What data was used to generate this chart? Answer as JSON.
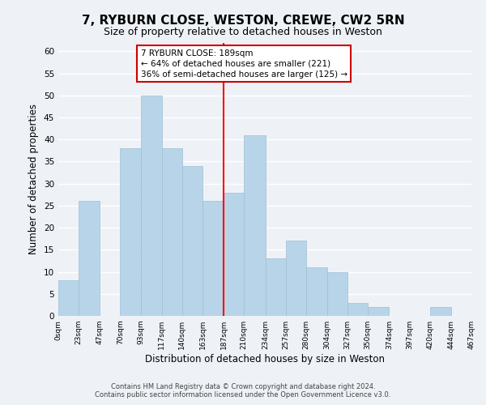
{
  "title": "7, RYBURN CLOSE, WESTON, CREWE, CW2 5RN",
  "subtitle": "Size of property relative to detached houses in Weston",
  "xlabel": "Distribution of detached houses by size in Weston",
  "ylabel": "Number of detached properties",
  "footer_lines": [
    "Contains HM Land Registry data © Crown copyright and database right 2024.",
    "Contains public sector information licensed under the Open Government Licence v3.0."
  ],
  "annotation_title": "7 RYBURN CLOSE: 189sqm",
  "annotation_line1": "← 64% of detached houses are smaller (221)",
  "annotation_line2": "36% of semi-detached houses are larger (125) →",
  "bar_edges": [
    0,
    23,
    47,
    70,
    93,
    117,
    140,
    163,
    187,
    210,
    234,
    257,
    280,
    304,
    327,
    350,
    374,
    397,
    420,
    444,
    467
  ],
  "bar_heights": [
    8,
    26,
    0,
    38,
    50,
    38,
    34,
    26,
    28,
    41,
    13,
    17,
    11,
    10,
    3,
    2,
    0,
    0,
    2,
    0
  ],
  "bar_color": "#b8d4e8",
  "bar_edgecolor": "#a0bfd5",
  "vline_x": 187,
  "vline_color": "red",
  "ylim": [
    0,
    62
  ],
  "yticks": [
    0,
    5,
    10,
    15,
    20,
    25,
    30,
    35,
    40,
    45,
    50,
    55,
    60
  ],
  "xtick_labels": [
    "0sqm",
    "23sqm",
    "47sqm",
    "70sqm",
    "93sqm",
    "117sqm",
    "140sqm",
    "163sqm",
    "187sqm",
    "210sqm",
    "234sqm",
    "257sqm",
    "280sqm",
    "304sqm",
    "327sqm",
    "350sqm",
    "374sqm",
    "397sqm",
    "420sqm",
    "444sqm",
    "467sqm"
  ],
  "background_color": "#eef2f7",
  "plot_background_color": "#eef2f7",
  "grid_color": "white",
  "title_fontsize": 11,
  "subtitle_fontsize": 9,
  "annotation_box_edgecolor": "#cc0000",
  "annotation_box_facecolor": "white"
}
